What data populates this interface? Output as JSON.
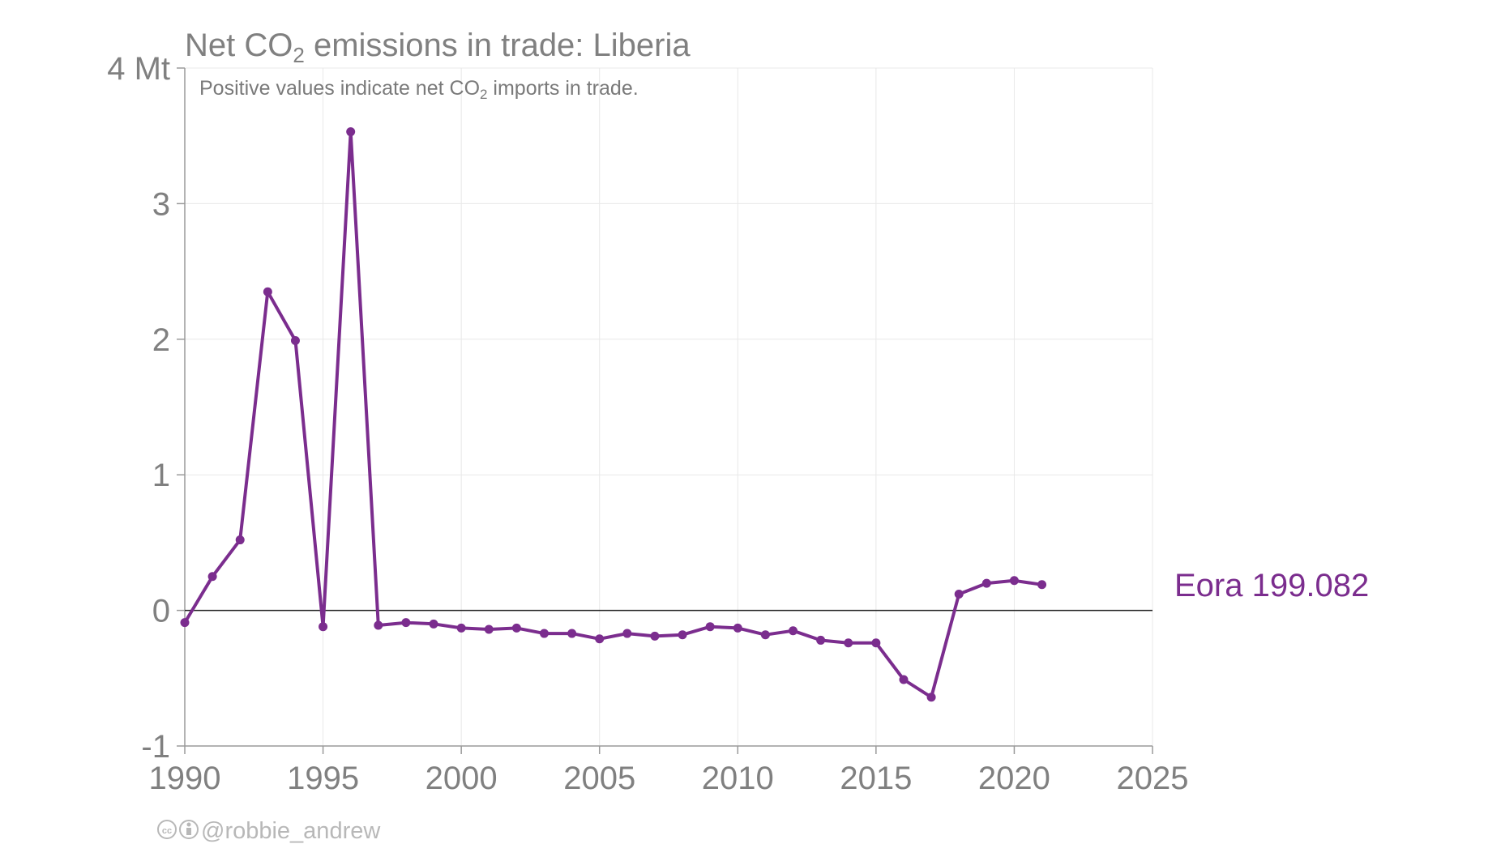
{
  "chart_data": {
    "type": "line",
    "title": {
      "prefix": "Net CO",
      "sub": "2",
      "suffix": " emissions in trade: Liberia"
    },
    "subtitle": {
      "prefix": "Positive values indicate net CO",
      "sub": "2",
      "suffix": " imports in trade."
    },
    "xlim": [
      1990,
      2025
    ],
    "ylim": [
      -1,
      4
    ],
    "x_ticks": [
      1990,
      1995,
      2000,
      2005,
      2010,
      2015,
      2020,
      2025
    ],
    "y_ticks": [
      {
        "value": -1,
        "label": "-1"
      },
      {
        "value": 0,
        "label": "0"
      },
      {
        "value": 1,
        "label": "1"
      },
      {
        "value": 2,
        "label": "2"
      },
      {
        "value": 3,
        "label": "3"
      },
      {
        "value": 4,
        "label": "4 Mt"
      }
    ],
    "grid": true,
    "zero_line": true,
    "series": [
      {
        "name": "Eora 199.082",
        "color": "#7b2d8e",
        "points": [
          [
            1990,
            -0.09
          ],
          [
            1991,
            0.25
          ],
          [
            1992,
            0.52
          ],
          [
            1993,
            2.35
          ],
          [
            1994,
            1.99
          ],
          [
            1995,
            -0.12
          ],
          [
            1996,
            3.53
          ],
          [
            1997,
            -0.11
          ],
          [
            1998,
            -0.09
          ],
          [
            1999,
            -0.1
          ],
          [
            2000,
            -0.13
          ],
          [
            2001,
            -0.14
          ],
          [
            2002,
            -0.13
          ],
          [
            2003,
            -0.17
          ],
          [
            2004,
            -0.17
          ],
          [
            2005,
            -0.21
          ],
          [
            2006,
            -0.17
          ],
          [
            2007,
            -0.19
          ],
          [
            2008,
            -0.18
          ],
          [
            2009,
            -0.12
          ],
          [
            2010,
            -0.13
          ],
          [
            2011,
            -0.18
          ],
          [
            2012,
            -0.15
          ],
          [
            2013,
            -0.22
          ],
          [
            2014,
            -0.24
          ],
          [
            2015,
            -0.24
          ],
          [
            2016,
            -0.51
          ],
          [
            2017,
            -0.64
          ],
          [
            2018,
            0.12
          ],
          [
            2019,
            0.2
          ],
          [
            2020,
            0.22
          ],
          [
            2021,
            0.19
          ]
        ]
      }
    ]
  },
  "credit": {
    "icons": [
      "cc-icon",
      "by-icon"
    ],
    "text": "@robbie_andrew"
  }
}
